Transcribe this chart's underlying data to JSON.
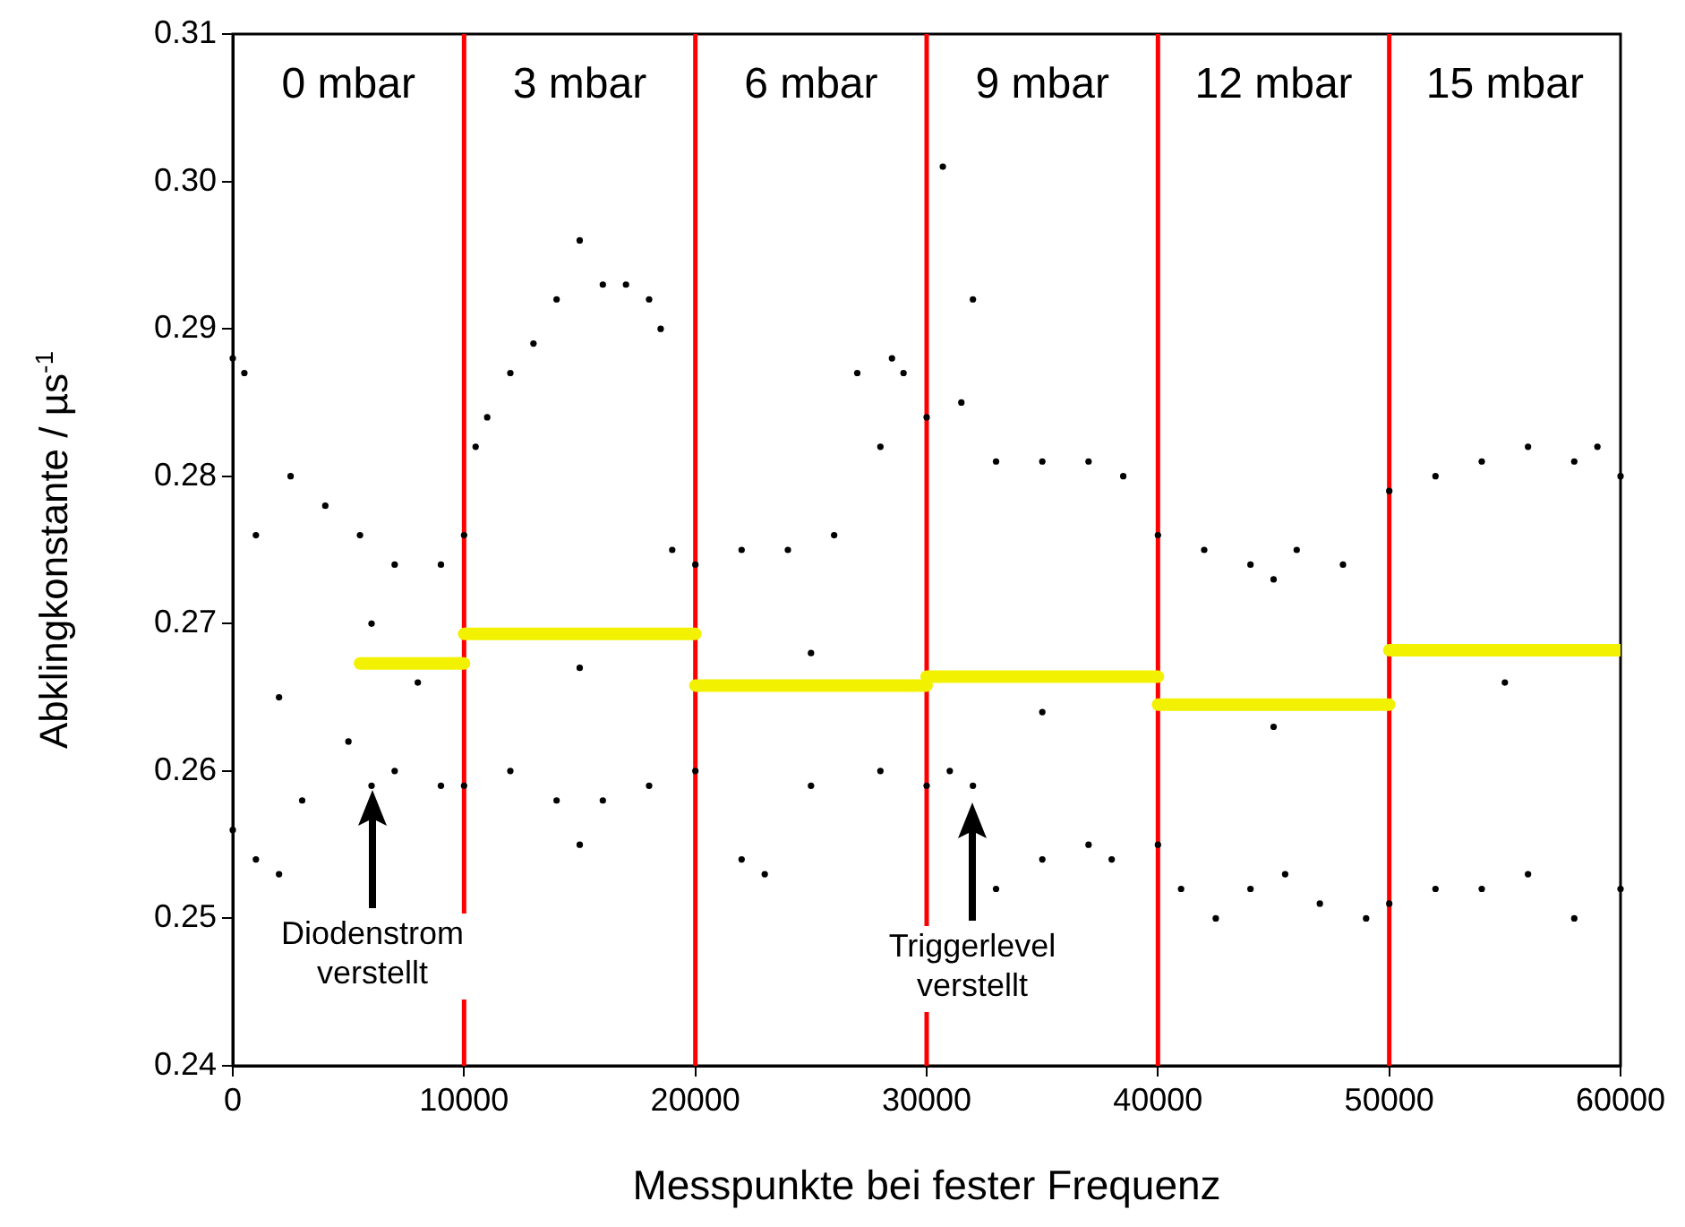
{
  "chart_data": {
    "type": "scatter",
    "xlabel": "Messpunkte bei fester Frequenz",
    "ylabel": "Abklingkonstante / µs$^{-1}$",
    "xlim": [
      0,
      60000
    ],
    "xticks": [
      0,
      10000,
      20000,
      30000,
      40000,
      50000,
      60000
    ],
    "ylim": [
      0.24,
      0.31
    ],
    "yticks": [
      0.24,
      0.25,
      0.26,
      0.27,
      0.28,
      0.29,
      {
        "value": 0.3,
        "label": "0.30"
      },
      0.31
    ],
    "grid": false,
    "legend": false,
    "marker": "circle",
    "series": [
      {
        "color": "#000000",
        "x": [
          0,
          500,
          1000,
          2500,
          4000,
          5500,
          6000,
          7000,
          9000,
          10000,
          10500,
          11000,
          12000,
          13000,
          14000,
          15000,
          16000,
          17000,
          18000,
          18500,
          19000,
          20000,
          22000,
          24000,
          26000,
          27000,
          28000,
          28500,
          29000,
          30000,
          30700,
          31500,
          32000,
          33000,
          35000,
          37000,
          38500,
          40000,
          42000,
          44000,
          45000,
          46000,
          48000,
          50000,
          52000,
          54000,
          56000,
          58000,
          59000,
          60000
        ],
        "values": [
          0.288,
          0.287,
          0.276,
          0.28,
          0.278,
          0.276,
          0.27,
          0.274,
          0.274,
          0.276,
          0.282,
          0.284,
          0.287,
          0.289,
          0.292,
          0.296,
          0.293,
          0.293,
          0.292,
          0.29,
          0.275,
          0.274,
          0.275,
          0.275,
          0.276,
          0.287,
          0.282,
          0.288,
          0.287,
          0.284,
          0.301,
          0.285,
          0.292,
          0.281,
          0.281,
          0.281,
          0.28,
          0.276,
          0.275,
          0.274,
          0.273,
          0.275,
          0.274,
          0.279,
          0.28,
          0.281,
          0.282,
          0.281,
          0.282,
          0.28
        ]
      },
      {
        "color": "#000000",
        "x": [
          0,
          1000,
          2000,
          3000,
          5000,
          6000,
          7000,
          9000,
          10000,
          12000,
          14000,
          15000,
          16000,
          18000,
          20000,
          22000,
          23000,
          25000,
          28000,
          30000,
          31000,
          32000,
          33000,
          35000,
          37000,
          38000,
          40000,
          41000,
          42500,
          44000,
          45500,
          47000,
          49000,
          50000,
          52000,
          54000,
          56000,
          58000,
          60000
        ],
        "values": [
          0.256,
          0.254,
          0.253,
          0.258,
          0.262,
          0.259,
          0.26,
          0.259,
          0.259,
          0.26,
          0.258,
          0.255,
          0.258,
          0.259,
          0.26,
          0.254,
          0.253,
          0.259,
          0.26,
          0.259,
          0.26,
          0.259,
          0.252,
          0.254,
          0.255,
          0.254,
          0.255,
          0.252,
          0.25,
          0.252,
          0.253,
          0.251,
          0.25,
          0.251,
          0.252,
          0.252,
          0.253,
          0.25,
          0.252
        ]
      },
      {
        "color": "#000000",
        "x": [
          2000,
          8000,
          15000,
          25000,
          35000,
          45000,
          55000
        ],
        "values": [
          0.265,
          0.266,
          0.267,
          0.268,
          0.264,
          0.263,
          0.266
        ]
      },
      {
        "type": "line",
        "marker": "none",
        "color": "#f2f200",
        "x": [
          5500,
          10000
        ],
        "values": [
          0.2673,
          0.2673
        ]
      },
      {
        "type": "line",
        "marker": "none",
        "color": "#f2f200",
        "x": [
          10000,
          20000
        ],
        "values": [
          0.2693,
          0.2693
        ]
      },
      {
        "type": "line",
        "marker": "none",
        "color": "#f2f200",
        "x": [
          20000,
          30000
        ],
        "values": [
          0.2658,
          0.2658
        ]
      },
      {
        "type": "line",
        "marker": "none",
        "color": "#f2f200",
        "x": [
          30000,
          40000
        ],
        "values": [
          0.2664,
          0.2664
        ]
      },
      {
        "type": "line",
        "marker": "none",
        "color": "#f2f200",
        "x": [
          40000,
          50000
        ],
        "values": [
          0.2645,
          0.2645
        ]
      },
      {
        "type": "line",
        "marker": "none",
        "color": "#f2f200",
        "x": [
          50000,
          60000
        ],
        "values": [
          0.2682,
          0.2682
        ]
      }
    ],
    "ref_lines": [
      {
        "axis": "x",
        "value": 10000,
        "color": "#ff0000"
      },
      {
        "axis": "x",
        "value": 20000,
        "color": "#ff0000"
      },
      {
        "axis": "x",
        "value": 30000,
        "color": "#ff0000"
      },
      {
        "axis": "x",
        "value": 40000,
        "color": "#ff0000"
      },
      {
        "axis": "x",
        "value": 50000,
        "color": "#ff0000"
      }
    ],
    "annotations": [
      "0 mbar",
      "3 mbar",
      "6 mbar",
      "9 mbar",
      "12 mbar",
      "15 mbar",
      "Diodenstrom\nverstellt",
      "Triggerlevel\nverstellt"
    ]
  }
}
